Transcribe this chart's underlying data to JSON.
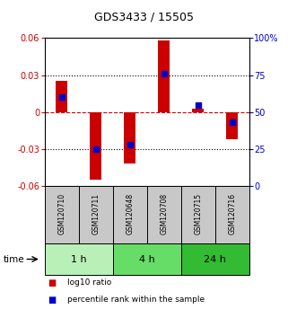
{
  "title": "GDS3433 / 15505",
  "samples": [
    "GSM120710",
    "GSM120711",
    "GSM120648",
    "GSM120708",
    "GSM120715",
    "GSM120716"
  ],
  "log10_ratio": [
    0.025,
    -0.055,
    -0.042,
    0.058,
    0.003,
    -0.022
  ],
  "percentile_rank": [
    60,
    25,
    28,
    76,
    55,
    43
  ],
  "ylim_left": [
    -0.06,
    0.06
  ],
  "ylim_right": [
    0,
    100
  ],
  "yticks_left": [
    -0.06,
    -0.03,
    0,
    0.03,
    0.06
  ],
  "yticks_right": [
    0,
    25,
    50,
    75,
    100
  ],
  "ytick_labels_right": [
    "0",
    "25",
    "50",
    "75",
    "100%"
  ],
  "hlines_dotted": [
    0.03,
    -0.03
  ],
  "hline_dashed_red": 0,
  "bar_color": "#cc0000",
  "point_color": "#0000cc",
  "bar_width": 0.35,
  "time_groups": [
    {
      "label": "1 h",
      "cols": [
        0,
        1
      ],
      "color": "#b8f0b8"
    },
    {
      "label": "4 h",
      "cols": [
        2,
        3
      ],
      "color": "#66dd66"
    },
    {
      "label": "24 h",
      "cols": [
        4,
        5
      ],
      "color": "#33bb33"
    }
  ],
  "legend_log10_color": "#cc0000",
  "legend_pct_color": "#0000cc",
  "sample_box_color": "#c8c8c8",
  "xlabel_time": "time"
}
